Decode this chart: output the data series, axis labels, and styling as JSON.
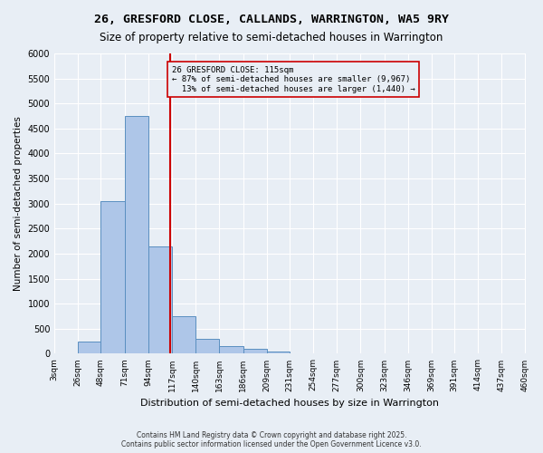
{
  "title1": "26, GRESFORD CLOSE, CALLANDS, WARRINGTON, WA5 9RY",
  "title2": "Size of property relative to semi-detached houses in Warrington",
  "xlabel": "Distribution of semi-detached houses by size in Warrington",
  "ylabel": "Number of semi-detached properties",
  "bin_edges": [
    3,
    26,
    48,
    71,
    94,
    117,
    140,
    163,
    186,
    209,
    231,
    254,
    277,
    300,
    323,
    346,
    369,
    391,
    414,
    437,
    460
  ],
  "bin_labels": [
    "3sqm",
    "26sqm",
    "48sqm",
    "71sqm",
    "94sqm",
    "117sqm",
    "140sqm",
    "163sqm",
    "186sqm",
    "209sqm",
    "231sqm",
    "254sqm",
    "277sqm",
    "300sqm",
    "323sqm",
    "346sqm",
    "369sqm",
    "391sqm",
    "414sqm",
    "437sqm",
    "460sqm"
  ],
  "bar_values": [
    0,
    250,
    3050,
    4750,
    2150,
    750,
    300,
    150,
    100,
    50,
    15,
    5,
    2,
    1,
    0,
    0,
    0,
    0,
    0,
    0
  ],
  "bar_color": "#aec6e8",
  "bar_edge_color": "#5a8fc0",
  "property_size": 115,
  "property_label": "26 GRESFORD CLOSE: 115sqm",
  "pct_smaller": 87,
  "n_smaller": 9967,
  "pct_larger": 13,
  "n_larger": 1440,
  "vline_color": "#cc0000",
  "annotation_box_color": "#cc0000",
  "ylim": [
    0,
    6000
  ],
  "yticks": [
    0,
    500,
    1000,
    1500,
    2000,
    2500,
    3000,
    3500,
    4000,
    4500,
    5000,
    5500,
    6000
  ],
  "bg_color": "#e8eef5",
  "footnote": "Contains HM Land Registry data © Crown copyright and database right 2025.\nContains public sector information licensed under the Open Government Licence v3.0.",
  "figsize": [
    6.0,
    5.0
  ],
  "dpi": 100
}
